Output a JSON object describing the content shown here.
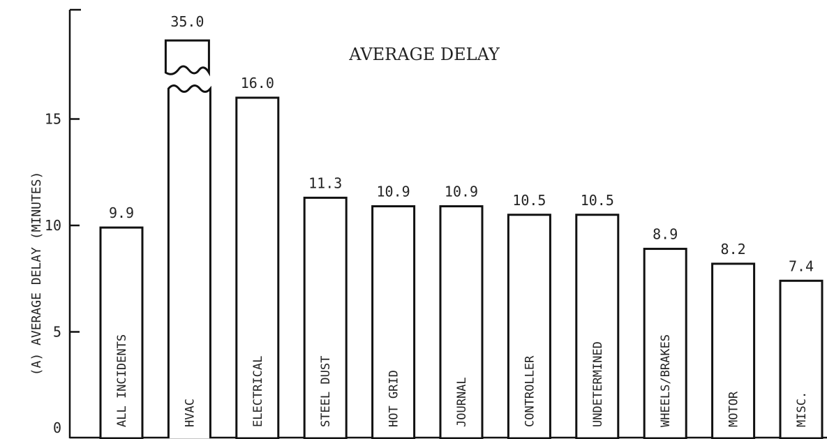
{
  "chart_data": {
    "type": "bar",
    "title": "AVERAGE DELAY",
    "ylabel": "(A) AVERAGE DELAY (MINUTES)",
    "xlabel": "",
    "ylim": [
      0,
      20
    ],
    "yticks": [
      0,
      5,
      10,
      15
    ],
    "grid": false,
    "broken_axis_categories": [
      "HVAC"
    ],
    "categories": [
      "ALL INCIDENTS",
      "HVAC",
      "ELECTRICAL",
      "STEEL DUST",
      "HOT GRID",
      "JOURNAL",
      "CONTROLLER",
      "UNDETERMINED",
      "WHEELS/BRAKES",
      "MOTOR",
      "MISC."
    ],
    "values": [
      9.9,
      35.0,
      16.0,
      11.3,
      10.9,
      10.9,
      10.5,
      10.5,
      8.9,
      8.2,
      7.4
    ],
    "value_labels": [
      "9.9",
      "35.0",
      "16.0",
      "11.3",
      "10.9",
      "10.9",
      "10.5",
      "10.5",
      "8.9",
      "8.2",
      "7.4"
    ]
  }
}
